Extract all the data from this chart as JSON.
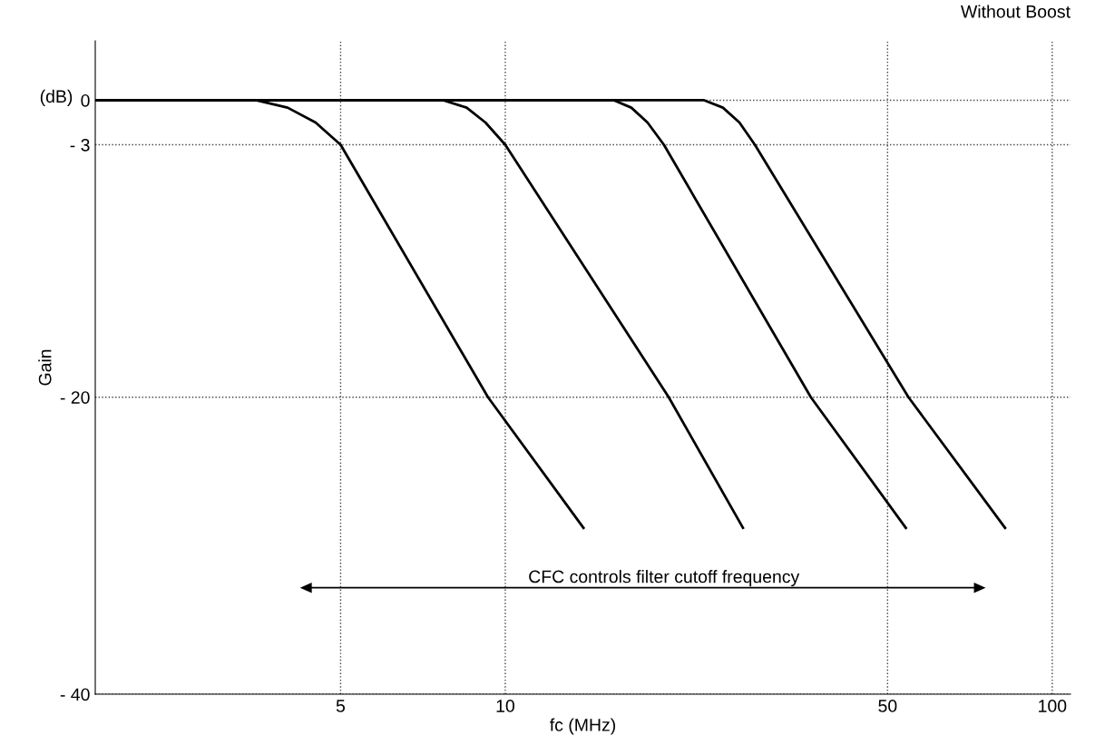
{
  "chart_data": {
    "type": "line",
    "xlabel": "fc (MHz)",
    "ylabel": "Gain",
    "log": "x",
    "xlim": [
      1.78,
      108
    ],
    "xticks": [
      5,
      10,
      50,
      100
    ],
    "ylim": [
      -40,
      4
    ],
    "yticks": [
      0,
      {
        "value": -3,
        "label": "- 3"
      },
      {
        "value": -20,
        "label": "- 20"
      },
      {
        "value": -40,
        "label": "- 40"
      }
    ],
    "grid": true,
    "line_style": "solid",
    "marker": "none",
    "series": [
      {
        "color": "#000000",
        "x": [
          1.78,
          3.5,
          4.0,
          4.5,
          5.0,
          9.3,
          13.9
        ],
        "values": [
          0,
          0,
          -0.5,
          -1.5,
          -3,
          -20,
          -28.8
        ]
      },
      {
        "color": "#000000",
        "x": [
          1.78,
          7.7,
          8.5,
          9.2,
          10.0,
          19.9,
          27.2
        ],
        "values": [
          0,
          0,
          -0.5,
          -1.5,
          -3,
          -20,
          -28.8
        ]
      },
      {
        "color": "#000000",
        "x": [
          1.78,
          15.8,
          17.0,
          18.2,
          19.5,
          36.2,
          54
        ],
        "values": [
          0,
          0,
          -0.5,
          -1.5,
          -3,
          -20,
          -28.8
        ]
      },
      {
        "color": "#000000",
        "x": [
          1.78,
          23.1,
          25.0,
          26.8,
          28.6,
          54.6,
          82
        ],
        "values": [
          0,
          0,
          -0.5,
          -1.5,
          -3,
          -20,
          -28.8
        ]
      }
    ],
    "annotations": [
      "(dB)",
      "Without Boost",
      "CFC controls filter cutoff frequency"
    ]
  }
}
